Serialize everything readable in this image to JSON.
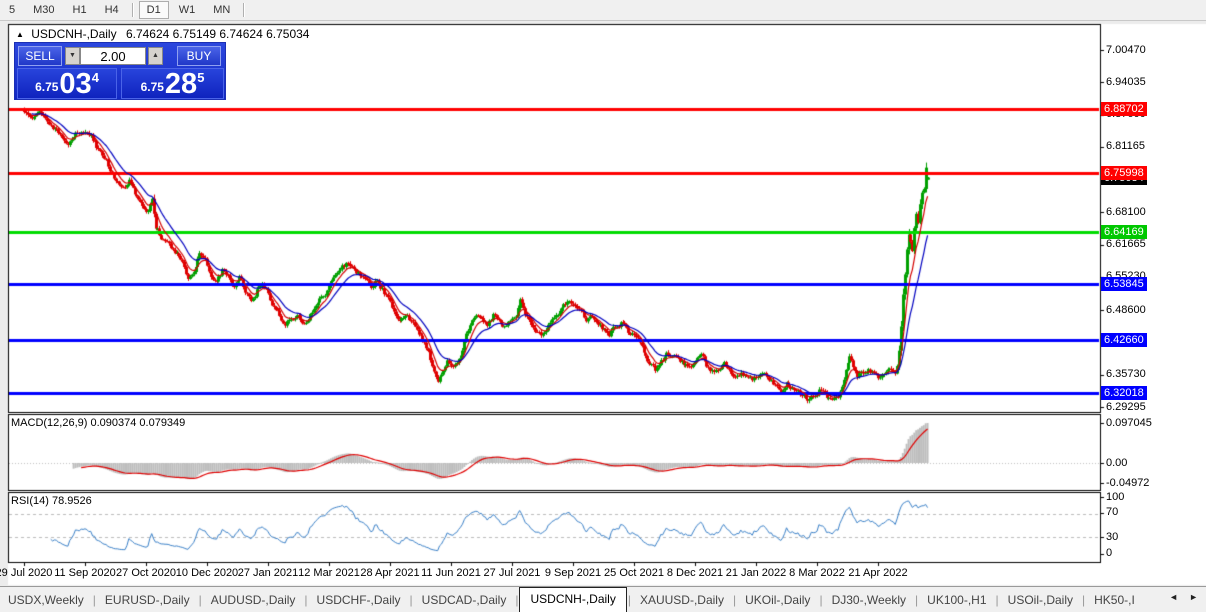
{
  "toolbar": {
    "timeframes": [
      {
        "label": "5",
        "active": false
      },
      {
        "label": "M30",
        "active": false
      },
      {
        "label": "H1",
        "active": false
      },
      {
        "label": "H4",
        "active": false
      },
      {
        "label": "D1",
        "active": true
      },
      {
        "label": "W1",
        "active": false
      },
      {
        "label": "MN",
        "active": false
      }
    ]
  },
  "chart_header": {
    "collapse_arrow": "▲",
    "symbol": "USDCNH-,Daily",
    "ohlc": "6.74624 6.75149 6.74624 6.75034"
  },
  "trade_panel": {
    "sell_label": "SELL",
    "buy_label": "BUY",
    "volume": "2.00",
    "spinner_down": "▼",
    "spinner_up": "▲",
    "sell_price_small": "6.75",
    "sell_price_big": "03",
    "sell_price_sup": "4",
    "buy_price_small": "6.75",
    "buy_price_big": "28",
    "buy_price_sup": "5"
  },
  "indicators": {
    "macd_label": "MACD(12,26,9) 0.090374 0.079349",
    "rsi_label": "RSI(14) 78.9526"
  },
  "chart_data": {
    "type": "candlestick",
    "symbol": "USDCNH-",
    "timeframe": "Daily",
    "last_candle": {
      "o": 6.74624,
      "h": 6.75149,
      "l": 6.74624,
      "c": 6.75034
    },
    "price_ticks": [
      "7.00470",
      "6.94035",
      "6.87600",
      "6.81165",
      "6.68100",
      "6.61665",
      "6.55230",
      "6.48600",
      "6.35730",
      "6.29295"
    ],
    "price_badges": [
      {
        "label": "6.88702",
        "color": "#FF0000"
      },
      {
        "label": "6.75998",
        "color": "#FF0000"
      },
      {
        "label": "6.75034",
        "color": "#000000"
      },
      {
        "label": "6.64169",
        "color": "#00C800"
      },
      {
        "label": "6.53845",
        "color": "#0000FF"
      },
      {
        "label": "6.42660",
        "color": "#0000FF"
      },
      {
        "label": "6.32018",
        "color": "#0000FF"
      }
    ],
    "hlines": [
      {
        "price": 6.88702,
        "color": "#FF0000"
      },
      {
        "price": 6.75998,
        "color": "#FF0000"
      },
      {
        "price": 6.64169,
        "color": "#00DC00"
      },
      {
        "price": 6.53845,
        "color": "#0000FF"
      },
      {
        "price": 6.4266,
        "color": "#0000FF"
      },
      {
        "price": 6.32018,
        "color": "#0000FF"
      }
    ],
    "x_dates": [
      "29 Jul 2020",
      "11 Sep 2020",
      "27 Oct 2020",
      "10 Dec 2020",
      "27 Jan 2021",
      "12 Mar 2021",
      "28 Apr 2021",
      "11 Jun 2021",
      "27 Jul 2021",
      "9 Sep 2021",
      "25 Oct 2021",
      "8 Dec 2021",
      "21 Jan 2022",
      "8 Mar 2022",
      "21 Apr 2022"
    ],
    "macd_axis": [
      "0.097045",
      "0.00",
      "-0.04972"
    ],
    "rsi_axis": [
      "100",
      "70",
      "30",
      "0"
    ],
    "rsi_levels": [
      70,
      30
    ],
    "colors": {
      "up": "#00A000",
      "down": "#E00000",
      "ma_fast": "#D40000",
      "ma_slow": "#0000C0",
      "macd_hist": "#BEBEBE",
      "macd_signal": "#E00000",
      "rsi_line": "#3980C8",
      "grid_dash": "#BBBBBB"
    },
    "close_keyframes": [
      [
        0,
        6.882
      ],
      [
        4,
        6.868
      ],
      [
        8,
        6.883
      ],
      [
        11,
        6.87
      ],
      [
        14,
        6.854
      ],
      [
        17,
        6.84
      ],
      [
        20,
        6.826
      ],
      [
        23,
        6.814
      ],
      [
        26,
        6.832
      ],
      [
        30,
        6.846
      ],
      [
        33,
        6.84
      ],
      [
        36,
        6.826
      ],
      [
        40,
        6.8
      ],
      [
        44,
        6.775
      ],
      [
        48,
        6.742
      ],
      [
        52,
        6.73
      ],
      [
        55,
        6.742
      ],
      [
        58,
        6.72
      ],
      [
        62,
        6.698
      ],
      [
        65,
        6.682
      ],
      [
        67,
        6.712
      ],
      [
        69,
        6.655
      ],
      [
        71,
        6.64
      ],
      [
        74,
        6.622
      ],
      [
        77,
        6.61
      ],
      [
        80,
        6.601
      ],
      [
        83,
        6.58
      ],
      [
        86,
        6.552
      ],
      [
        89,
        6.566
      ],
      [
        92,
        6.598
      ],
      [
        95,
        6.583
      ],
      [
        98,
        6.558
      ],
      [
        101,
        6.544
      ],
      [
        104,
        6.566
      ],
      [
        107,
        6.55
      ],
      [
        110,
        6.534
      ],
      [
        113,
        6.548
      ],
      [
        116,
        6.526
      ],
      [
        119,
        6.506
      ],
      [
        122,
        6.526
      ],
      [
        125,
        6.538
      ],
      [
        128,
        6.518
      ],
      [
        131,
        6.494
      ],
      [
        134,
        6.476
      ],
      [
        137,
        6.461
      ],
      [
        140,
        6.468
      ],
      [
        143,
        6.477
      ],
      [
        146,
        6.461
      ],
      [
        149,
        6.47
      ],
      [
        152,
        6.49
      ],
      [
        155,
        6.504
      ],
      [
        158,
        6.519
      ],
      [
        161,
        6.539
      ],
      [
        164,
        6.555
      ],
      [
        167,
        6.571
      ],
      [
        170,
        6.581
      ],
      [
        173,
        6.568
      ],
      [
        176,
        6.556
      ],
      [
        179,
        6.544
      ],
      [
        182,
        6.534
      ],
      [
        185,
        6.547
      ],
      [
        188,
        6.528
      ],
      [
        191,
        6.506
      ],
      [
        194,
        6.488
      ],
      [
        197,
        6.468
      ],
      [
        200,
        6.479
      ],
      [
        203,
        6.464
      ],
      [
        206,
        6.446
      ],
      [
        209,
        6.428
      ],
      [
        212,
        6.4
      ],
      [
        215,
        6.365
      ],
      [
        217,
        6.347
      ],
      [
        219,
        6.361
      ],
      [
        222,
        6.383
      ],
      [
        225,
        6.374
      ],
      [
        228,
        6.39
      ],
      [
        231,
        6.424
      ],
      [
        234,
        6.46
      ],
      [
        237,
        6.483
      ],
      [
        240,
        6.474
      ],
      [
        243,
        6.461
      ],
      [
        246,
        6.477
      ],
      [
        249,
        6.468
      ],
      [
        252,
        6.454
      ],
      [
        255,
        6.47
      ],
      [
        258,
        6.482
      ],
      [
        260,
        6.506
      ],
      [
        262,
        6.486
      ],
      [
        265,
        6.466
      ],
      [
        268,
        6.447
      ],
      [
        271,
        6.435
      ],
      [
        274,
        6.452
      ],
      [
        277,
        6.47
      ],
      [
        280,
        6.483
      ],
      [
        283,
        6.496
      ],
      [
        286,
        6.506
      ],
      [
        289,
        6.497
      ],
      [
        292,
        6.481
      ],
      [
        295,
        6.469
      ],
      [
        298,
        6.477
      ],
      [
        301,
        6.461
      ],
      [
        304,
        6.447
      ],
      [
        307,
        6.439
      ],
      [
        310,
        6.452
      ],
      [
        313,
        6.461
      ],
      [
        316,
        6.447
      ],
      [
        319,
        6.437
      ],
      [
        322,
        6.425
      ],
      [
        325,
        6.4
      ],
      [
        328,
        6.383
      ],
      [
        331,
        6.369
      ],
      [
        334,
        6.382
      ],
      [
        337,
        6.396
      ],
      [
        340,
        6.401
      ],
      [
        343,
        6.389
      ],
      [
        346,
        6.379
      ],
      [
        349,
        6.371
      ],
      [
        352,
        6.382
      ],
      [
        355,
        6.391
      ],
      [
        358,
        6.377
      ],
      [
        361,
        6.364
      ],
      [
        364,
        6.371
      ],
      [
        367,
        6.379
      ],
      [
        370,
        6.369
      ],
      [
        373,
        6.357
      ],
      [
        376,
        6.364
      ],
      [
        379,
        6.351
      ],
      [
        382,
        6.344
      ],
      [
        385,
        6.357
      ],
      [
        388,
        6.367
      ],
      [
        391,
        6.351
      ],
      [
        394,
        6.337
      ],
      [
        397,
        6.329
      ],
      [
        400,
        6.339
      ],
      [
        403,
        6.331
      ],
      [
        406,
        6.321
      ],
      [
        409,
        6.313
      ],
      [
        412,
        6.306
      ],
      [
        415,
        6.317
      ],
      [
        418,
        6.329
      ],
      [
        421,
        6.311
      ],
      [
        424,
        6.301
      ],
      [
        427,
        6.31
      ],
      [
        429,
        6.338
      ],
      [
        431,
        6.37
      ],
      [
        433,
        6.396
      ],
      [
        435,
        6.374
      ],
      [
        437,
        6.352
      ],
      [
        440,
        6.361
      ],
      [
        443,
        6.369
      ],
      [
        446,
        6.357
      ],
      [
        449,
        6.351
      ],
      [
        452,
        6.364
      ],
      [
        455,
        6.369
      ],
      [
        457,
        6.359
      ],
      [
        458,
        6.374
      ],
      [
        459,
        6.404
      ],
      [
        460,
        6.452
      ],
      [
        461,
        6.516
      ],
      [
        462,
        6.556
      ],
      [
        463,
        6.606
      ],
      [
        464,
        6.636
      ],
      [
        465,
        6.622
      ],
      [
        466,
        6.604
      ],
      [
        467,
        6.65
      ],
      [
        468,
        6.678
      ],
      [
        469,
        6.66
      ],
      [
        470,
        6.698
      ],
      [
        471,
        6.72
      ],
      [
        472,
        6.728
      ],
      [
        473,
        6.77
      ],
      [
        474,
        6.75034
      ]
    ]
  },
  "bottom_tabs": {
    "tabs": [
      "USDX,Weekly",
      "EURUSD-,Daily",
      "AUDUSD-,Daily",
      "USDCHF-,Daily",
      "USDCAD-,Daily",
      "USDCNH-,Daily",
      "XAUUSD-,Daily",
      "UKOil-,Daily",
      "DJ30-,Weekly",
      "UK100-,H1",
      "USOil-,Daily",
      "HK50-,I"
    ],
    "active": "USDCNH-,Daily",
    "scroll_left": "◄",
    "scroll_right": "►"
  }
}
